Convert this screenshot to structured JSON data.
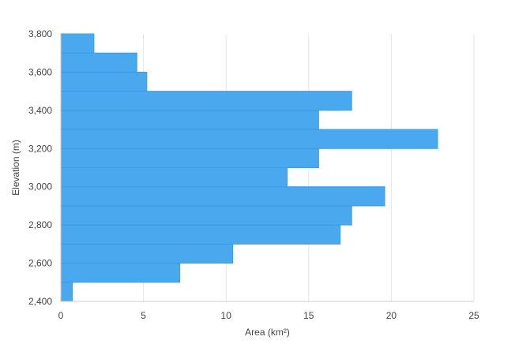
{
  "chart_data": {
    "type": "bar",
    "orientation": "horizontal",
    "title": "",
    "xlabel": "Area (km²)",
    "ylabel": "Elevation (m)",
    "xlim": [
      0,
      25
    ],
    "ylim": [
      2400,
      3800
    ],
    "bin_size": 100,
    "grid": true,
    "bar_color": "#4aa8ee",
    "bar_stroke_color": "#3d9be5",
    "grid_color": "#e6e6e6",
    "axis_color": "#cccccc",
    "x_ticks": [
      {
        "value": 0,
        "label": "0"
      },
      {
        "value": 5,
        "label": "5"
      },
      {
        "value": 10,
        "label": "10"
      },
      {
        "value": 15,
        "label": "15"
      },
      {
        "value": 20,
        "label": "20"
      },
      {
        "value": 25,
        "label": "25"
      }
    ],
    "y_ticks": [
      {
        "value": 2400,
        "label": "2,400"
      },
      {
        "value": 2600,
        "label": "2,600"
      },
      {
        "value": 2800,
        "label": "2,800"
      },
      {
        "value": 3000,
        "label": "3,000"
      },
      {
        "value": 3200,
        "label": "3,200"
      },
      {
        "value": 3400,
        "label": "3,400"
      },
      {
        "value": 3600,
        "label": "3,600"
      },
      {
        "value": 3800,
        "label": "3,800"
      }
    ],
    "bins": [
      {
        "from": 2400,
        "to": 2500,
        "value": 0.7
      },
      {
        "from": 2500,
        "to": 2600,
        "value": 7.2
      },
      {
        "from": 2600,
        "to": 2700,
        "value": 10.4
      },
      {
        "from": 2700,
        "to": 2800,
        "value": 16.9
      },
      {
        "from": 2800,
        "to": 2900,
        "value": 17.6
      },
      {
        "from": 2900,
        "to": 3000,
        "value": 19.6
      },
      {
        "from": 3000,
        "to": 3100,
        "value": 13.7
      },
      {
        "from": 3100,
        "to": 3200,
        "value": 15.6
      },
      {
        "from": 3200,
        "to": 3300,
        "value": 22.8
      },
      {
        "from": 3300,
        "to": 3400,
        "value": 15.6
      },
      {
        "from": 3400,
        "to": 3500,
        "value": 17.6
      },
      {
        "from": 3500,
        "to": 3600,
        "value": 5.2
      },
      {
        "from": 3600,
        "to": 3700,
        "value": 4.6
      },
      {
        "from": 3700,
        "to": 3800,
        "value": 2.0
      }
    ]
  }
}
